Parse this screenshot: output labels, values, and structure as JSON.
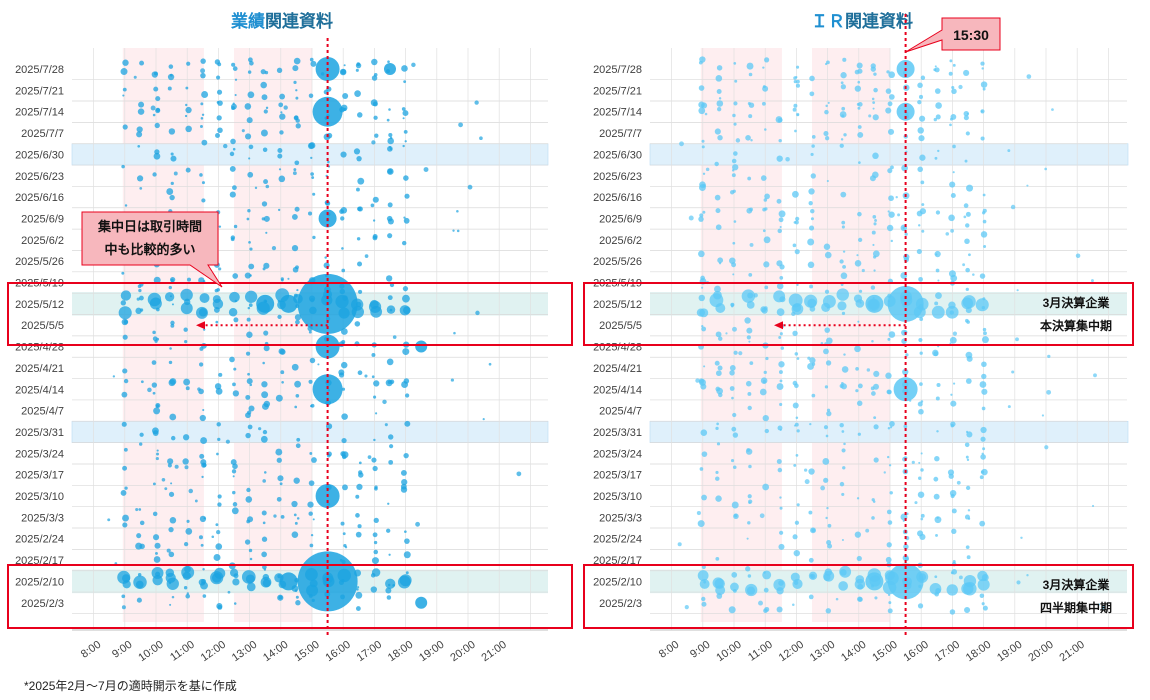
{
  "footnote": "*2025年2月～7月の適時開示を基に作成",
  "colors": {
    "bubble": "#1ba3e0",
    "bubble_light": "#5cc8f5",
    "title_accent": "#1f8fd1",
    "title_text": "#1f6f9a",
    "highlight_red": "#e8001c",
    "band_pink": "#fde7ea",
    "band_blue": "#dff0fb",
    "band_teal": "#e0f2f1",
    "callout_fill": "#f7b7bd"
  },
  "chart_data": [
    {
      "type": "scatter",
      "title_accent": "業績",
      "title_rest": "関連資料",
      "x_ticks": [
        "8:00",
        "9:00",
        "10:00",
        "11:00",
        "12:00",
        "13:00",
        "14:00",
        "15:00",
        "16:00",
        "17:00",
        "18:00",
        "19:00",
        "20:00",
        "21:00"
      ],
      "y_ticks": [
        "2025/7/28",
        "2025/7/21",
        "2025/7/14",
        "2025/7/7",
        "2025/6/30",
        "2025/6/23",
        "2025/6/16",
        "2025/6/9",
        "2025/6/2",
        "2025/5/26",
        "2025/5/19",
        "2025/5/12",
        "2025/5/5",
        "2025/4/28",
        "2025/4/21",
        "2025/4/14",
        "2025/4/7",
        "2025/3/31",
        "2025/3/24",
        "2025/3/17",
        "2025/3/10",
        "2025/3/3",
        "2025/2/24",
        "2025/2/17",
        "2025/2/10",
        "2025/2/3"
      ],
      "marker_time": "15:30",
      "callout": [
        "集中日は取引時間",
        "中も比較的多い"
      ],
      "notes": [],
      "bubbles": [
        {
          "time": "15:30",
          "week": "2025/5/12",
          "size": 10
        },
        {
          "time": "15:30",
          "week": "2025/2/10",
          "size": 10
        },
        {
          "time": "15:30",
          "week": "2025/7/28",
          "size": 4
        },
        {
          "time": "15:30",
          "week": "2025/7/14",
          "size": 5
        },
        {
          "time": "15:30",
          "week": "2025/6/9",
          "size": 3
        },
        {
          "time": "15:30",
          "week": "2025/4/14",
          "size": 5
        },
        {
          "time": "15:30",
          "week": "2025/3/10",
          "size": 4
        },
        {
          "time": "15:30",
          "week": "2025/4/28",
          "size": 4
        },
        {
          "time": "14:15",
          "week": "2025/5/12",
          "size": 3
        },
        {
          "time": "13:30",
          "week": "2025/5/12",
          "size": 3
        },
        {
          "time": "14:15",
          "week": "2025/2/10",
          "size": 3
        },
        {
          "time": "17:30",
          "week": "2025/7/28",
          "size": 2
        },
        {
          "time": "18:30",
          "week": "2025/4/28",
          "size": 2
        },
        {
          "time": "18:30",
          "week": "2025/2/3",
          "size": 2
        }
      ]
    },
    {
      "type": "scatter",
      "title_accent": "ＩＲ",
      "title_rest": "関連資料",
      "x_ticks": [
        "8:00",
        "9:00",
        "10:00",
        "11:00",
        "12:00",
        "13:00",
        "14:00",
        "15:00",
        "16:00",
        "17:00",
        "18:00",
        "19:00",
        "20:00",
        "21:00"
      ],
      "y_ticks": [
        "2025/7/28",
        "2025/7/21",
        "2025/7/14",
        "2025/7/7",
        "2025/6/30",
        "2025/6/23",
        "2025/6/16",
        "2025/6/9",
        "2025/6/2",
        "2025/5/26",
        "2025/5/19",
        "2025/5/12",
        "2025/5/5",
        "2025/4/28",
        "2025/4/21",
        "2025/4/14",
        "2025/4/7",
        "2025/3/31",
        "2025/3/24",
        "2025/3/17",
        "2025/3/10",
        "2025/3/3",
        "2025/2/24",
        "2025/2/17",
        "2025/2/10",
        "2025/2/3"
      ],
      "marker_time": "15:30",
      "callout": [
        "15:30"
      ],
      "notes": [
        [
          "3月決算企業",
          "本決算集中期"
        ],
        [
          "3月決算企業",
          "四半期集中期"
        ]
      ],
      "bubbles": [
        {
          "time": "15:30",
          "week": "2025/5/12",
          "size": 6
        },
        {
          "time": "15:30",
          "week": "2025/2/10",
          "size": 6
        },
        {
          "time": "15:30",
          "week": "2025/4/14",
          "size": 4
        },
        {
          "time": "15:30",
          "week": "2025/7/14",
          "size": 3
        },
        {
          "time": "15:30",
          "week": "2025/7/28",
          "size": 3
        },
        {
          "time": "14:30",
          "week": "2025/5/12",
          "size": 3
        },
        {
          "time": "14:30",
          "week": "2025/2/10",
          "size": 3
        }
      ]
    }
  ]
}
